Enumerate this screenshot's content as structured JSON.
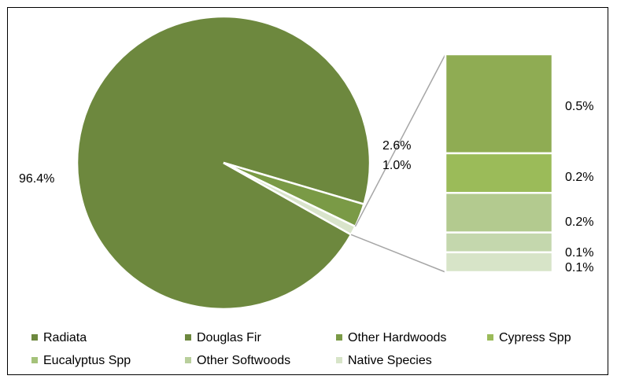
{
  "chart_data": {
    "type": "pie",
    "subtype": "bar-of-pie",
    "main_slices": [
      {
        "label": "96.4%",
        "value": 96.4,
        "color": "#6D883E"
      },
      {
        "label": "2.6%",
        "value": 2.6,
        "color": "#7A9A46"
      },
      {
        "label": "1.0%",
        "value": 1.0,
        "color": "#D9E4CB"
      }
    ],
    "bar_segments": [
      {
        "label": "0.5%",
        "value": 0.5,
        "color": "#8FAC53"
      },
      {
        "label": "0.2%",
        "value": 0.2,
        "color": "#9BBB59"
      },
      {
        "label": "0.2%",
        "value": 0.2,
        "color": "#B3CA8F"
      },
      {
        "label": "0.1%",
        "value": 0.1,
        "color": "#C4D7AD"
      },
      {
        "label": "0.1%",
        "value": 0.1,
        "color": "#D7E4C8"
      }
    ],
    "legend": [
      {
        "name": "Radiata",
        "color": "#6D883E"
      },
      {
        "name": "Douglas Fir",
        "color": "#6D883E"
      },
      {
        "name": "Other Hardwoods",
        "color": "#7A9A46"
      },
      {
        "name": "Cypress Spp",
        "color": "#9BBB59"
      },
      {
        "name": "Eucalyptus Spp",
        "color": "#A5C27A"
      },
      {
        "name": "Other Softwoods",
        "color": "#B9CF9C"
      },
      {
        "name": "Native Species",
        "color": "#D7E4C8"
      }
    ],
    "legend_position": "bottom",
    "connector_color": "#A6A6A6"
  }
}
